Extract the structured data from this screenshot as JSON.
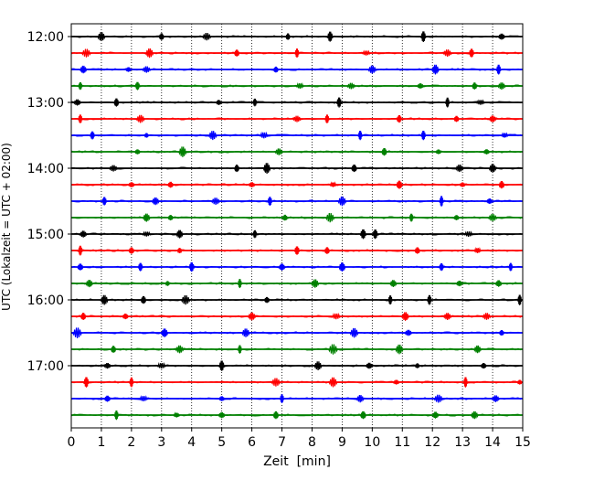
{
  "chart_data": {
    "type": "line",
    "title": "",
    "xlabel": "Zeit  [min]",
    "ylabel": "UTC (Lokalzeit = UTC + 02:00)",
    "xlim": [
      0,
      15
    ],
    "x_ticks": [
      0,
      1,
      2,
      3,
      4,
      5,
      6,
      7,
      8,
      9,
      10,
      11,
      12,
      13,
      14,
      15
    ],
    "x_tick_labels": [
      "0",
      "1",
      "2",
      "3",
      "4",
      "5",
      "6",
      "7",
      "8",
      "9",
      "10",
      "11",
      "12",
      "13",
      "14",
      "15"
    ],
    "y_tick_labels": [
      "12:00",
      "13:00",
      "14:00",
      "15:00",
      "16:00",
      "17:00"
    ],
    "y_tick_rows": [
      0,
      4,
      8,
      12,
      16,
      20
    ],
    "grid": "vertical dotted lines at each minute",
    "legend": "none",
    "colors": [
      "#000000",
      "#ff0000",
      "#0000ff",
      "#008000"
    ],
    "traces": [
      {
        "row": 0,
        "start": "12:00",
        "color": "#000000",
        "bursts": [
          1.0,
          3.0,
          4.5,
          7.2,
          8.6,
          11.7,
          14.3
        ]
      },
      {
        "row": 1,
        "start": "12:15",
        "color": "#ff0000",
        "bursts": [
          0.5,
          2.6,
          5.5,
          7.5,
          9.8,
          12.5,
          13.3
        ]
      },
      {
        "row": 2,
        "start": "12:30",
        "color": "#0000ff",
        "bursts": [
          0.4,
          1.9,
          2.5,
          6.8,
          10.0,
          12.1,
          14.2
        ]
      },
      {
        "row": 3,
        "start": "12:45",
        "color": "#008000",
        "bursts": [
          0.3,
          2.2,
          7.6,
          9.3,
          11.6,
          13.4,
          14.3
        ]
      },
      {
        "row": 4,
        "start": "13:00",
        "color": "#000000",
        "bursts": [
          0.2,
          1.5,
          4.9,
          6.1,
          8.9,
          12.5,
          13.6
        ]
      },
      {
        "row": 5,
        "start": "13:15",
        "color": "#ff0000",
        "bursts": [
          0.3,
          2.3,
          7.5,
          8.5,
          10.9,
          12.8,
          14.0
        ]
      },
      {
        "row": 6,
        "start": "13:30",
        "color": "#0000ff",
        "bursts": [
          0.7,
          2.5,
          4.7,
          6.4,
          9.6,
          11.7,
          14.4
        ]
      },
      {
        "row": 7,
        "start": "13:45",
        "color": "#008000",
        "bursts": [
          2.2,
          3.7,
          6.9,
          10.4,
          12.2,
          13.8
        ]
      },
      {
        "row": 8,
        "start": "14:00",
        "color": "#000000",
        "bursts": [
          1.4,
          5.5,
          6.5,
          9.4,
          12.9,
          14.0
        ]
      },
      {
        "row": 9,
        "start": "14:15",
        "color": "#ff0000",
        "bursts": [
          2.0,
          3.3,
          6.0,
          8.7,
          10.9,
          13.0,
          14.3
        ]
      },
      {
        "row": 10,
        "start": "14:30",
        "color": "#0000ff",
        "bursts": [
          1.1,
          2.8,
          4.8,
          6.6,
          9.0,
          12.3,
          13.9
        ]
      },
      {
        "row": 11,
        "start": "14:45",
        "color": "#008000",
        "bursts": [
          2.5,
          3.3,
          7.1,
          8.6,
          11.3,
          12.8,
          14.0
        ]
      },
      {
        "row": 12,
        "start": "15:00",
        "color": "#000000",
        "bursts": [
          0.4,
          2.5,
          3.6,
          6.1,
          9.7,
          10.1,
          13.2
        ]
      },
      {
        "row": 13,
        "start": "15:15",
        "color": "#ff0000",
        "bursts": [
          0.3,
          2.0,
          3.6,
          7.5,
          8.5,
          11.5,
          13.5
        ]
      },
      {
        "row": 14,
        "start": "15:30",
        "color": "#0000ff",
        "bursts": [
          0.3,
          2.3,
          4.0,
          7.0,
          9.0,
          12.3,
          14.6
        ]
      },
      {
        "row": 15,
        "start": "15:45",
        "color": "#008000",
        "bursts": [
          0.6,
          3.2,
          5.6,
          8.1,
          10.7,
          12.9,
          14.2
        ]
      },
      {
        "row": 16,
        "start": "16:00",
        "color": "#000000",
        "bursts": [
          1.1,
          2.4,
          3.8,
          6.5,
          10.6,
          11.9,
          14.9
        ]
      },
      {
        "row": 17,
        "start": "16:15",
        "color": "#ff0000",
        "bursts": [
          0.4,
          1.8,
          6.0,
          8.8,
          11.1,
          12.5,
          13.8
        ]
      },
      {
        "row": 18,
        "start": "16:30",
        "color": "#0000ff",
        "bursts": [
          0.2,
          3.1,
          5.8,
          9.4,
          11.2,
          14.3
        ]
      },
      {
        "row": 19,
        "start": "16:45",
        "color": "#008000",
        "bursts": [
          1.4,
          3.6,
          5.6,
          8.7,
          10.9,
          13.5
        ]
      },
      {
        "row": 20,
        "start": "17:00",
        "color": "#000000",
        "bursts": [
          1.2,
          3.0,
          5.0,
          8.2,
          9.9,
          11.5,
          13.7
        ]
      },
      {
        "row": 21,
        "start": "17:15",
        "color": "#ff0000",
        "bursts": [
          0.5,
          2.0,
          6.8,
          8.7,
          10.8,
          13.1,
          14.9
        ]
      },
      {
        "row": 22,
        "start": "17:30",
        "color": "#0000ff",
        "bursts": [
          1.2,
          2.4,
          5.0,
          7.0,
          9.6,
          12.2,
          14.1
        ]
      },
      {
        "row": 23,
        "start": "17:45",
        "color": "#008000",
        "bursts": [
          1.5,
          3.5,
          5.0,
          6.8,
          9.7,
          12.1,
          13.4
        ]
      }
    ]
  }
}
